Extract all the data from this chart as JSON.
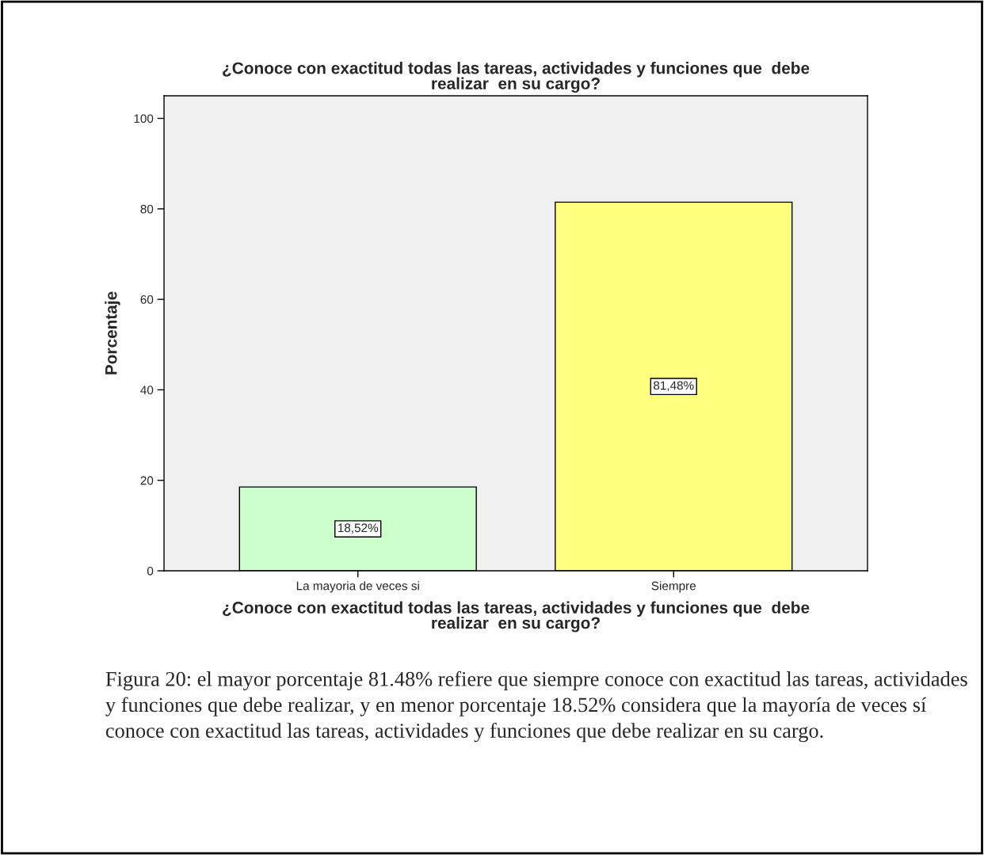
{
  "chart_data": {
    "type": "bar",
    "title": "¿Conoce con exactitud todas las tareas, actividades y funciones que  debe\nrealizar  en su cargo?",
    "xlabel": "¿Conoce con exactitud todas las tareas, actividades y funciones que  debe\nrealizar  en su cargo?",
    "ylabel": "Porcentaje",
    "categories": [
      "La mayoria de veces si",
      "Siempre"
    ],
    "values": [
      18.52,
      81.48
    ],
    "colors": [
      "#ccffcc",
      "#ffff80"
    ],
    "value_labels": [
      "18,52%",
      "81,48%"
    ],
    "ylim": [
      0,
      105
    ],
    "yticks": [
      0,
      20,
      40,
      60,
      80,
      100
    ],
    "grid": false,
    "annotations": [
      "Figura 20: el mayor porcentaje 81.48% refiere que siempre conoce con exactitud las tareas, actividades y funciones que debe realizar, y en menor porcentaje 18.52% considera que la mayoría de veces sí conoce con exactitud las tareas, actividades y funciones que debe realizar en su cargo."
    ]
  }
}
